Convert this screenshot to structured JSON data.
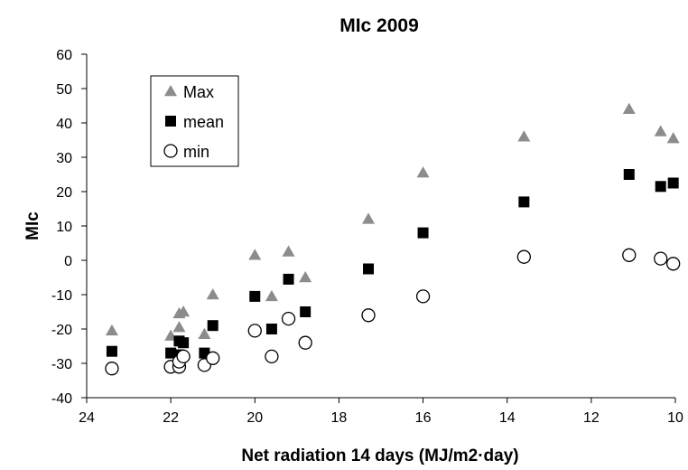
{
  "chart_data": {
    "type": "scatter",
    "title": "MIc 2009",
    "xlabel": "Net radiation 14 days (MJ/m2·day)",
    "ylabel": "MIc",
    "xlim": [
      24,
      10
    ],
    "x_reversed": true,
    "ylim": [
      -40,
      60
    ],
    "x_ticks": [
      24,
      22,
      20,
      18,
      16,
      14,
      12,
      10
    ],
    "y_ticks": [
      -40,
      -30,
      -20,
      -10,
      0,
      10,
      20,
      30,
      40,
      50,
      60
    ],
    "grid": false,
    "legend_position": "top-left",
    "series": [
      {
        "name": "Max",
        "marker": "triangle",
        "color": "#8c8c8c",
        "points": [
          [
            23.4,
            -20.5
          ],
          [
            22.0,
            -22.0
          ],
          [
            21.8,
            -19.5
          ],
          [
            21.8,
            -15.5
          ],
          [
            21.7,
            -15.0
          ],
          [
            21.2,
            -21.5
          ],
          [
            21.0,
            -10.0
          ],
          [
            20.0,
            1.5
          ],
          [
            19.6,
            -10.5
          ],
          [
            19.2,
            2.5
          ],
          [
            18.8,
            -5.0
          ],
          [
            17.3,
            12.0
          ],
          [
            16.0,
            25.5
          ],
          [
            13.6,
            36.0
          ],
          [
            11.1,
            44.0
          ],
          [
            10.35,
            37.5
          ],
          [
            10.05,
            35.5
          ]
        ]
      },
      {
        "name": "mean",
        "marker": "square",
        "color": "#000000",
        "points": [
          [
            23.4,
            -26.5
          ],
          [
            22.0,
            -27.0
          ],
          [
            21.8,
            -27.5
          ],
          [
            21.8,
            -23.5
          ],
          [
            21.7,
            -24.0
          ],
          [
            21.2,
            -27.0
          ],
          [
            21.0,
            -19.0
          ],
          [
            20.0,
            -10.5
          ],
          [
            19.6,
            -20.0
          ],
          [
            19.2,
            -5.5
          ],
          [
            18.8,
            -15.0
          ],
          [
            17.3,
            -2.5
          ],
          [
            16.0,
            8.0
          ],
          [
            13.6,
            17.0
          ],
          [
            11.1,
            25.0
          ],
          [
            10.35,
            21.5
          ],
          [
            10.05,
            22.5
          ]
        ]
      },
      {
        "name": "min",
        "marker": "circle-open",
        "color": "#000000",
        "points": [
          [
            23.4,
            -31.5
          ],
          [
            22.0,
            -31.0
          ],
          [
            21.8,
            -31.0
          ],
          [
            21.8,
            -29.5
          ],
          [
            21.7,
            -28.0
          ],
          [
            21.2,
            -30.5
          ],
          [
            21.0,
            -28.5
          ],
          [
            20.0,
            -20.5
          ],
          [
            19.6,
            -28.0
          ],
          [
            19.2,
            -17.0
          ],
          [
            18.8,
            -24.0
          ],
          [
            17.3,
            -16.0
          ],
          [
            16.0,
            -10.5
          ],
          [
            13.6,
            1.0
          ],
          [
            11.1,
            1.5
          ],
          [
            10.35,
            0.5
          ],
          [
            10.05,
            -1.0
          ]
        ]
      }
    ]
  }
}
